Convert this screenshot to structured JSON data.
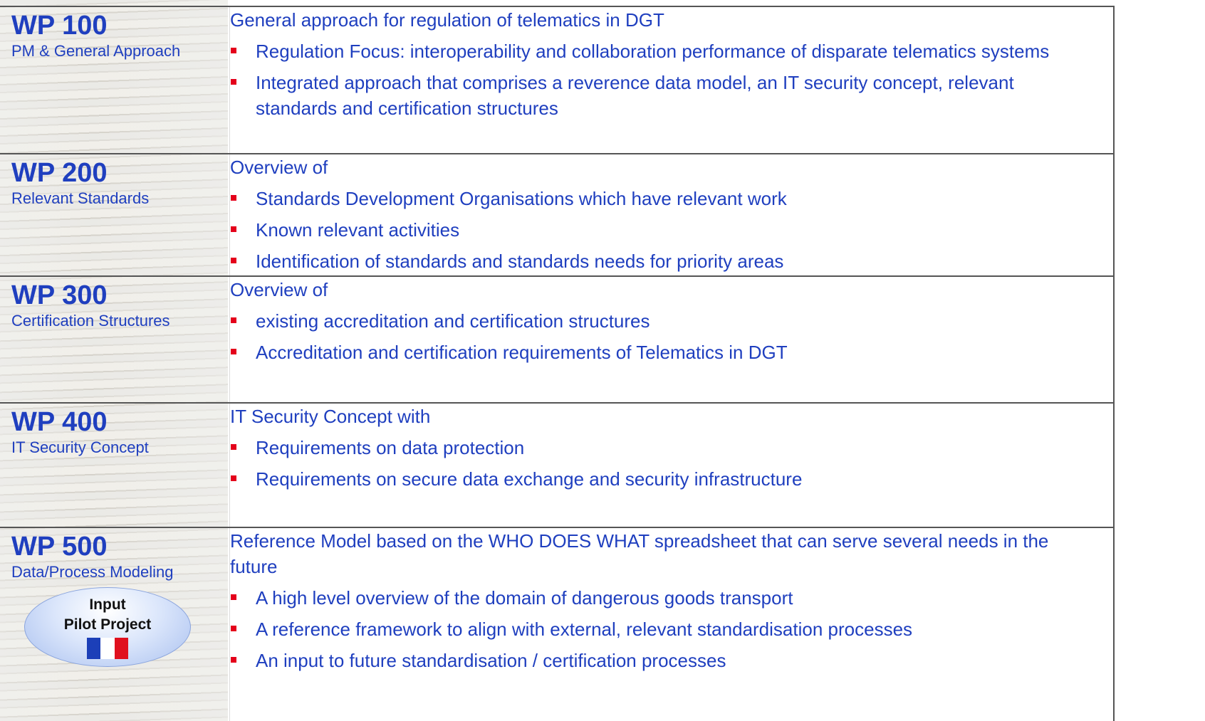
{
  "rows": [
    {
      "wp": "WP 100",
      "subtitle": "PM & General Approach",
      "intro": "General approach for regulation of telematics in DGT",
      "bullets": [
        "Regulation Focus: interoperability and collaboration performance of disparate telematics systems",
        "Integrated approach that comprises a reverence data model, an IT security concept, relevant standards and  certification structures"
      ]
    },
    {
      "wp": "WP 200",
      "subtitle": "Relevant Standards",
      "intro": "Overview of",
      "bullets": [
        "Standards Development Organisations which have relevant work",
        "Known relevant activities",
        "Identification of standards and standards needs for priority areas"
      ]
    },
    {
      "wp": "WP 300",
      "subtitle": "Certification Structures",
      "intro": "Overview of",
      "bullets": [
        "existing accreditation and certification structures",
        "Accreditation and certification requirements of Telematics in DGT"
      ]
    },
    {
      "wp": "WP 400",
      "subtitle": "IT Security Concept",
      "intro": "IT Security Concept with",
      "bullets": [
        "Requirements on data protection",
        "Requirements on secure data exchange and security infrastructure"
      ]
    },
    {
      "wp": "WP 500",
      "subtitle": "Data/Process Modeling",
      "intro": "Reference Model based on the WHO DOES WHAT spreadsheet that can serve several needs in the future",
      "bullets": [
        "A high level overview of the domain of dangerous goods transport",
        "A reference framework to align with external, relevant standardisation processes",
        "An input to future standardisation / certification processes"
      ]
    }
  ],
  "badge": {
    "line1": "Input",
    "line2": "Pilot Project"
  }
}
